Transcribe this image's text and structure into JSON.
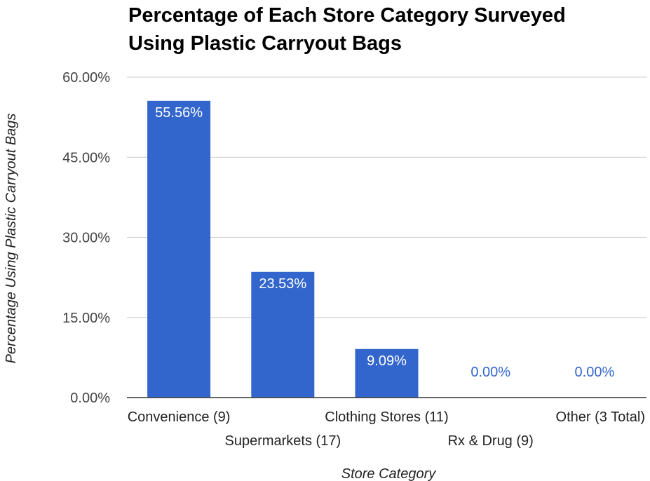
{
  "chart_data": {
    "type": "bar",
    "title_lines": [
      "Percentage of Each Store Category Surveyed",
      "Using Plastic Carryout Bags"
    ],
    "xlabel": "Store Category",
    "ylabel": "Percentage Using Plastic Carryout Bags",
    "categories": [
      "Convenience (9)",
      "Supermarkets (17)",
      "Clothing Stores (11)",
      "Rx & Drug (9)",
      "Other (3 Total)"
    ],
    "values": [
      55.56,
      23.53,
      9.09,
      0.0,
      0.0
    ],
    "data_labels": [
      "55.56%",
      "23.53%",
      "9.09%",
      "0.00%",
      "0.00%"
    ],
    "ylim": [
      0,
      60
    ],
    "yticks": [
      0,
      15,
      30,
      45,
      60
    ],
    "ytick_labels": [
      "0.00%",
      "15.00%",
      "30.00%",
      "45.00%",
      "60.00%"
    ],
    "grid": true,
    "legend": "none",
    "colors": {
      "bar": "#3366cc",
      "label_inside": "#ffffff",
      "label_outside": "#3366cc",
      "grid": "#cccccc",
      "baseline": "#333333"
    }
  }
}
